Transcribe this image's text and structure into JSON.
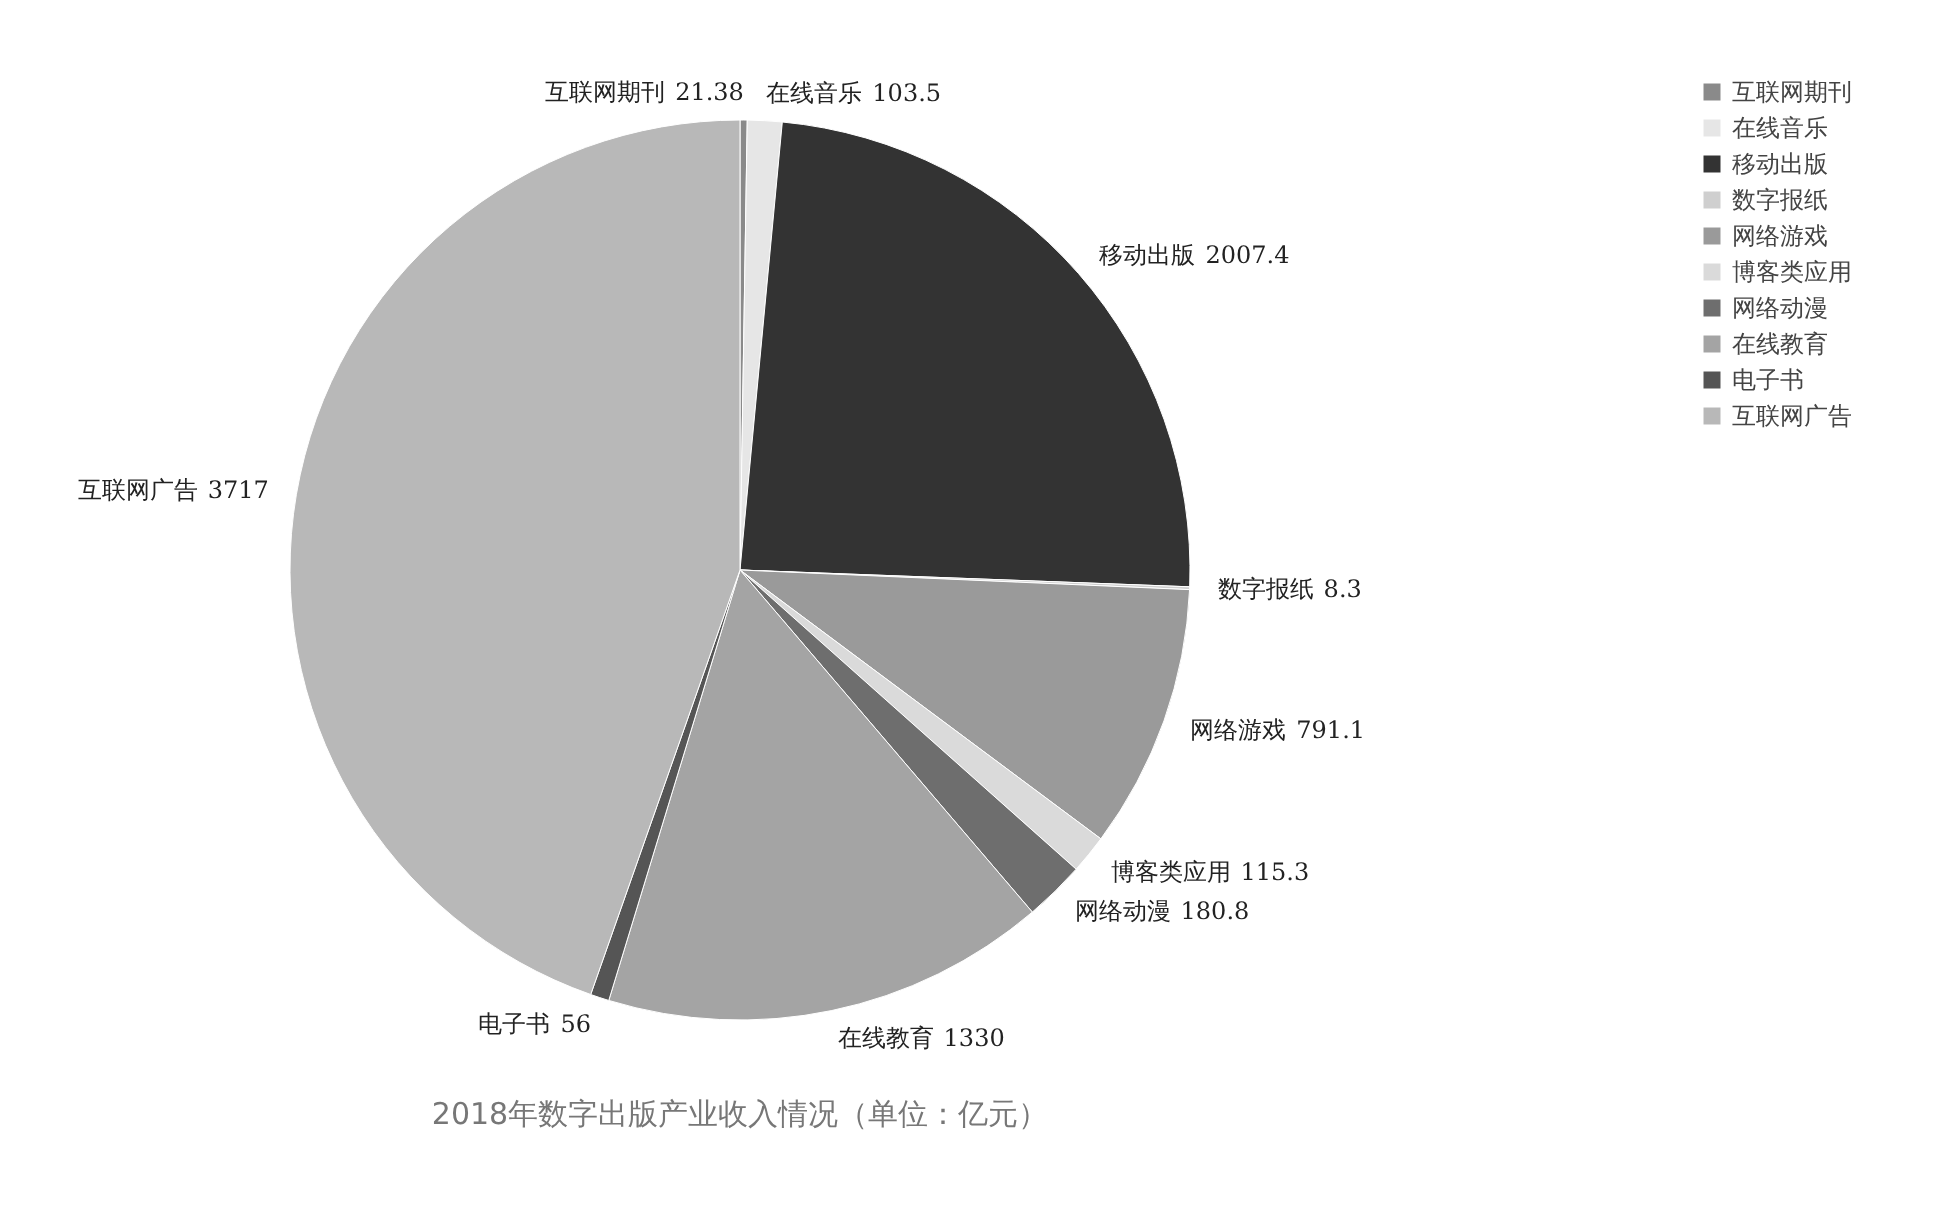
{
  "chart_data": {
    "type": "pie",
    "title": "2018年数字出版产业收入情况（单位：亿元）",
    "categories": [
      "互联网期刊",
      "在线音乐",
      "移动出版",
      "数字报纸",
      "网络游戏",
      "博客类应用",
      "网络动漫",
      "在线教育",
      "电子书",
      "互联网广告"
    ],
    "values": [
      21.38,
      103.5,
      2007.4,
      8.3,
      791.1,
      115.3,
      180.8,
      1330,
      56,
      3717
    ],
    "colors": [
      "#8a8a8a",
      "#e6e6e6",
      "#333333",
      "#cfcfcf",
      "#9a9a9a",
      "#dadada",
      "#6e6e6e",
      "#a4a4a4",
      "#555555",
      "#b8b8b8"
    ],
    "data_labels": true,
    "legend": "right"
  }
}
